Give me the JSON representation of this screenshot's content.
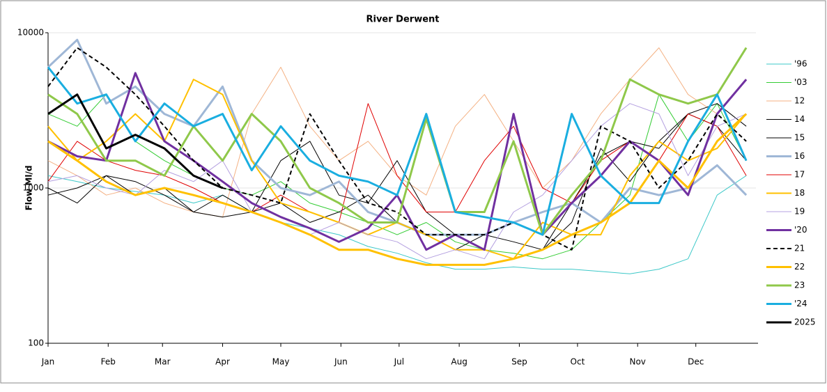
{
  "chart_data": {
    "type": "line",
    "title": "River Derwent",
    "y_label": "Flow Ml/d",
    "log_y": true,
    "grid": true,
    "legend": "right",
    "xlim": [
      0,
      365
    ],
    "xticks": [
      {
        "value": 0,
        "label": "Jan"
      },
      {
        "value": 31,
        "label": "Feb"
      },
      {
        "value": 59,
        "label": "Mar"
      },
      {
        "value": 90,
        "label": "Apr"
      },
      {
        "value": 120,
        "label": "May"
      },
      {
        "value": 151,
        "label": "Jun"
      },
      {
        "value": 181,
        "label": "Jul"
      },
      {
        "value": 212,
        "label": "Aug"
      },
      {
        "value": 243,
        "label": "Sep"
      },
      {
        "value": 273,
        "label": "Oct"
      },
      {
        "value": 304,
        "label": "Nov"
      },
      {
        "value": 334,
        "label": "Dec"
      }
    ],
    "ylim": [
      100,
      10000
    ],
    "yticks": [
      100,
      1000,
      10000
    ],
    "x": [
      0,
      15,
      30,
      45,
      60,
      75,
      90,
      105,
      120,
      135,
      150,
      165,
      180,
      195,
      210,
      225,
      240,
      255,
      270,
      285,
      300,
      315,
      330,
      345,
      360
    ],
    "series": [
      {
        "name": "'96",
        "color": "#3cc8c8",
        "width": 1,
        "dash": false,
        "values": [
          1200,
          1100,
          1000,
          950,
          900,
          800,
          900,
          700,
          600,
          550,
          500,
          420,
          380,
          330,
          300,
          300,
          310,
          300,
          300,
          290,
          280,
          300,
          350,
          900,
          1200
        ]
      },
      {
        "name": "'03",
        "color": "#33cc33",
        "width": 1,
        "dash": false,
        "values": [
          3000,
          2500,
          4000,
          2000,
          1500,
          1200,
          1000,
          900,
          1100,
          800,
          700,
          600,
          500,
          600,
          450,
          400,
          380,
          350,
          400,
          600,
          900,
          4000,
          2000,
          3500,
          1500
        ]
      },
      {
        "name": "12",
        "color": "#f4b183",
        "width": 1,
        "dash": false,
        "values": [
          1500,
          1200,
          900,
          1000,
          800,
          700,
          650,
          3000,
          6000,
          2500,
          1500,
          2000,
          1200,
          900,
          2500,
          4000,
          2000,
          1000,
          1500,
          3000,
          5000,
          8000,
          4000,
          3000,
          5000
        ]
      },
      {
        "name": "14",
        "color": "#000000",
        "width": 1,
        "dash": false,
        "values": [
          1000,
          800,
          1200,
          900,
          1000,
          700,
          900,
          700,
          800,
          600,
          700,
          900,
          600,
          500,
          400,
          500,
          450,
          400,
          600,
          1800,
          1100,
          2000,
          3000,
          3500,
          2500
        ]
      },
      {
        "name": "15",
        "color": "#000000",
        "width": 1,
        "dash": false,
        "values": [
          900,
          1000,
          1200,
          1100,
          900,
          700,
          650,
          700,
          1500,
          2000,
          900,
          800,
          1500,
          700,
          500,
          400,
          350,
          400,
          800,
          1600,
          2000,
          1800,
          3000,
          2500,
          1500
        ]
      },
      {
        "name": "16",
        "color": "#9fb7d6",
        "width": 3,
        "dash": false,
        "values": [
          6000,
          9000,
          3500,
          4500,
          3000,
          2500,
          4500,
          1500,
          1000,
          900,
          1100,
          700,
          600,
          500,
          500,
          500,
          600,
          700,
          800,
          600,
          1000,
          900,
          1000,
          1400,
          900
        ]
      },
      {
        "name": "17",
        "color": "#e00000",
        "width": 1,
        "dash": false,
        "values": [
          1100,
          2000,
          1500,
          1300,
          1200,
          1000,
          800,
          700,
          900,
          700,
          600,
          3500,
          1200,
          700,
          700,
          1500,
          2500,
          1000,
          800,
          1500,
          2000,
          1500,
          3000,
          2500,
          1200
        ]
      },
      {
        "name": "18",
        "color": "#ffc000",
        "width": 2,
        "dash": false,
        "values": [
          2500,
          1500,
          2000,
          3000,
          2000,
          5000,
          4000,
          1500,
          800,
          700,
          600,
          500,
          600,
          500,
          400,
          400,
          350,
          600,
          500,
          500,
          1200,
          2000,
          1500,
          1800,
          3000
        ]
      },
      {
        "name": "19",
        "color": "#b4a0e0",
        "width": 1,
        "dash": false,
        "values": [
          1100,
          1200,
          1000,
          900,
          1300,
          1100,
          1500,
          700,
          600,
          500,
          600,
          500,
          450,
          350,
          400,
          350,
          700,
          900,
          1500,
          2500,
          3500,
          3000,
          1200,
          2500,
          3000
        ]
      },
      {
        "name": "'20",
        "color": "#7030a0",
        "width": 3,
        "dash": false,
        "values": [
          2000,
          1600,
          1500,
          5500,
          2000,
          1500,
          1100,
          800,
          650,
          550,
          450,
          550,
          900,
          400,
          500,
          400,
          3000,
          500,
          800,
          1200,
          2000,
          1500,
          900,
          3000,
          5000
        ]
      },
      {
        "name": "21",
        "color": "#000000",
        "width": 2,
        "dash": true,
        "values": [
          4500,
          8000,
          6000,
          4000,
          2500,
          1500,
          1000,
          900,
          800,
          3000,
          1500,
          800,
          700,
          500,
          500,
          500,
          600,
          500,
          400,
          2500,
          2000,
          1000,
          1500,
          3000,
          2000
        ]
      },
      {
        "name": "22",
        "color": "#ffc000",
        "width": 3,
        "dash": false,
        "values": [
          2000,
          1500,
          1100,
          900,
          1000,
          900,
          800,
          700,
          600,
          500,
          400,
          400,
          350,
          320,
          320,
          320,
          350,
          400,
          500,
          600,
          800,
          1500,
          1000,
          2000,
          3000
        ]
      },
      {
        "name": "23",
        "color": "#8fc84a",
        "width": 3,
        "dash": false,
        "values": [
          4000,
          3000,
          1500,
          1500,
          1200,
          2500,
          1500,
          3000,
          2000,
          1000,
          800,
          600,
          600,
          2800,
          700,
          700,
          2000,
          500,
          900,
          1500,
          5000,
          4000,
          3500,
          4000,
          8000
        ]
      },
      {
        "name": "'24",
        "color": "#1aaee0",
        "width": 3,
        "dash": false,
        "values": [
          6000,
          3500,
          4000,
          2000,
          3500,
          2500,
          3000,
          1300,
          2500,
          1500,
          1200,
          1100,
          900,
          3000,
          700,
          650,
          600,
          500,
          3000,
          1200,
          800,
          800,
          2000,
          4000,
          1500
        ]
      },
      {
        "name": "2025",
        "color": "#000000",
        "width": 3,
        "dash": false,
        "values": [
          3000,
          4000,
          1800,
          2200,
          1800,
          1200,
          1000,
          null,
          null,
          null,
          null,
          null,
          null,
          null,
          null,
          null,
          null,
          null,
          null,
          null,
          null,
          null,
          null,
          null,
          null
        ]
      }
    ]
  }
}
